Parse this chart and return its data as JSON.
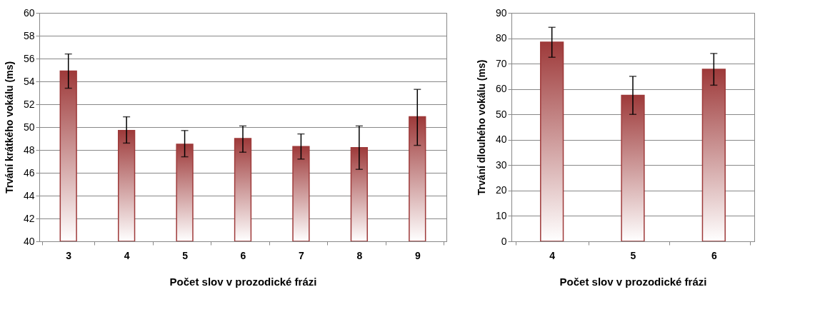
{
  "chart_data": [
    {
      "type": "bar",
      "xlabel": "Počet slov v prozodické frázi",
      "ylabel": "Trvání krátkého vokálu (ms)",
      "categories": [
        "3",
        "4",
        "5",
        "6",
        "7",
        "8",
        "9"
      ],
      "series": [
        {
          "color": "#9e3a3a",
          "values": [
            54.9,
            49.7,
            48.5,
            49.0,
            48.3,
            48.2,
            50.9
          ],
          "errors": [
            [
              53.4,
              56.4
            ],
            [
              48.6,
              50.9
            ],
            [
              47.4,
              49.7
            ],
            [
              47.8,
              50.1
            ],
            [
              47.2,
              49.4
            ],
            [
              46.3,
              50.1
            ],
            [
              48.4,
              53.3
            ]
          ]
        }
      ],
      "ylim": [
        40,
        60
      ],
      "yticks": [
        40,
        42,
        44,
        46,
        48,
        50,
        52,
        54,
        56,
        58,
        60
      ],
      "grid": "y"
    },
    {
      "type": "bar",
      "xlabel": "Počet slov v prozodické frázi",
      "ylabel": "Trvání dlouhého vokálu (ms)",
      "categories": [
        "4",
        "5",
        "6"
      ],
      "series": [
        {
          "color": "#9e3a3a",
          "values": [
            78.5,
            57.5,
            67.8
          ],
          "errors": [
            [
              72.5,
              84.3
            ],
            [
              50.0,
              65.0
            ],
            [
              61.5,
              74.0
            ]
          ]
        }
      ],
      "ylim": [
        0,
        90
      ],
      "yticks": [
        0,
        10,
        20,
        30,
        40,
        50,
        60,
        70,
        80,
        90
      ],
      "grid": "y"
    }
  ]
}
